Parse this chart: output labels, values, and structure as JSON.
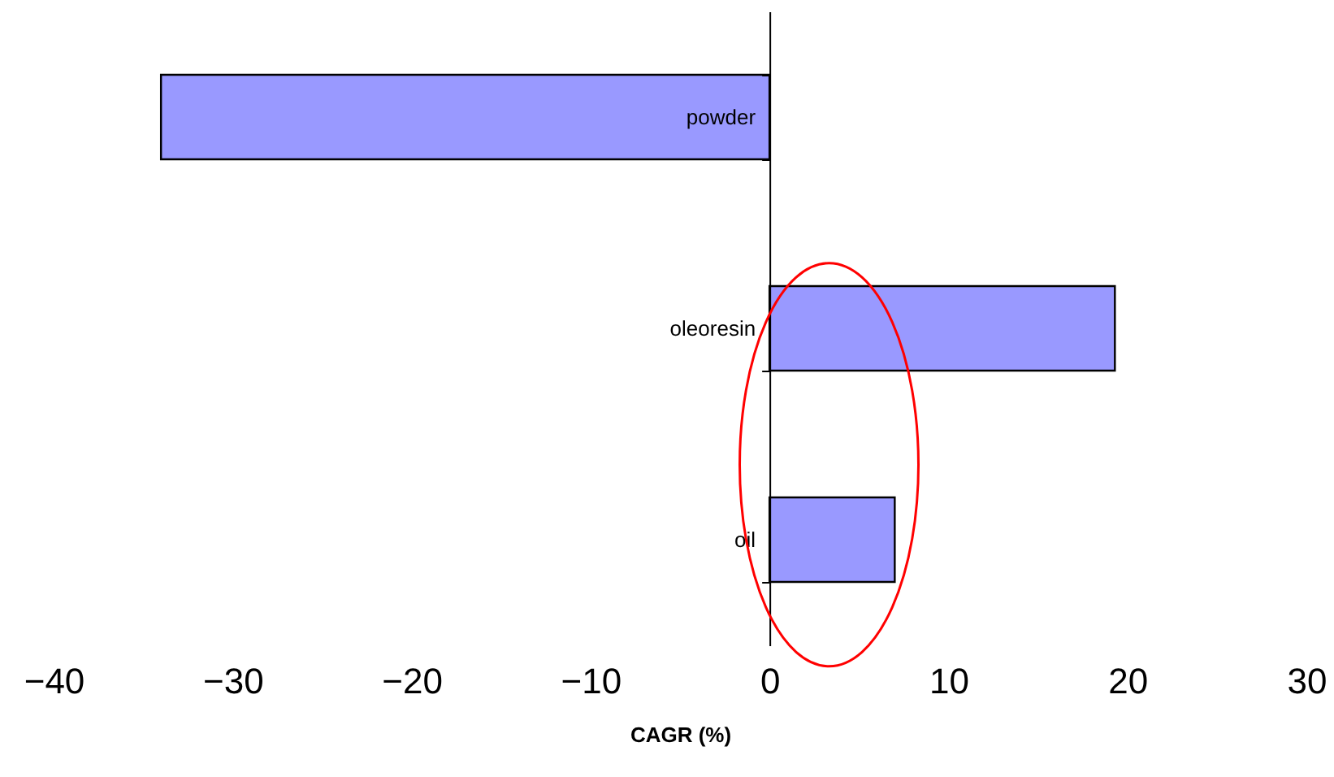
{
  "chart_data": {
    "type": "bar",
    "orientation": "horizontal",
    "xlabel": "CAGR (%)",
    "categories": [
      "powder",
      "oleoresin",
      "oil"
    ],
    "values": [
      -34,
      19.3,
      7
    ],
    "color": "#9999ff",
    "xlim": [
      -40,
      30
    ],
    "xticks": [
      -40,
      -30,
      -20,
      -10,
      0,
      10,
      20,
      30
    ],
    "grid": false
  }
}
